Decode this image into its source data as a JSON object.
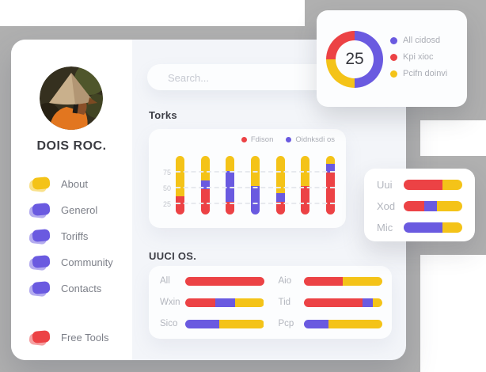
{
  "colors": {
    "red": "#ec4245",
    "purple": "#6a5ae0",
    "yellow": "#f4c318",
    "decor_gray": "#b0b0b0",
    "content_bg": "#f3f5f9",
    "card_bg": "#fcfdfe"
  },
  "sidebar": {
    "name": "DOIS ROC.",
    "items": [
      {
        "label": "About",
        "color": "#f4c318"
      },
      {
        "label": "Generol",
        "color": "#6a5ae0"
      },
      {
        "label": "Toriffs",
        "color": "#6a5ae0"
      },
      {
        "label": "Community",
        "color": "#6a5ae0"
      },
      {
        "label": "Contacts",
        "color": "#6a5ae0"
      }
    ],
    "footer_items": [
      {
        "label": "Free Tools",
        "color": "#ec4245"
      }
    ]
  },
  "search": {
    "placeholder": "Search..."
  },
  "sections": {
    "torks_title": "Torks",
    "uuci_title": "UUCI OS."
  },
  "chart_data": [
    {
      "id": "torks",
      "type": "bar",
      "orientation": "vertical",
      "stacked": true,
      "title": "Torks",
      "ylim": [
        0,
        100
      ],
      "yticks": [
        25,
        50,
        75
      ],
      "grid": "dashed-horizontal",
      "legend_position": "top-right",
      "legend": [
        {
          "name": "Fdison",
          "color": "#ec4245"
        },
        {
          "name": "Oidnksdi os",
          "color": "#6a5ae0"
        }
      ],
      "series": [
        {
          "name": "Fdison",
          "color": "#ec4245",
          "values": [
            31,
            43,
            22,
            0,
            22,
            49,
            72
          ]
        },
        {
          "name": "Oidnksdi os",
          "color": "#6a5ae0",
          "values": [
            0,
            15,
            52,
            49,
            15,
            0,
            14
          ]
        },
        {
          "name": "",
          "color": "#f4c318",
          "values": [
            69,
            42,
            26,
            51,
            63,
            51,
            14
          ]
        }
      ]
    },
    {
      "id": "kpi-donut",
      "type": "pie",
      "donut": true,
      "center_label": "25",
      "legend_position": "right",
      "slices": [
        {
          "label": "All cidosd",
          "color": "#6a5ae0",
          "value": 50,
          "start_pct": 0,
          "end_pct": 50
        },
        {
          "label": "Pcifn doinvi",
          "color": "#f4c318",
          "value": 25,
          "start_pct": 50,
          "end_pct": 75
        },
        {
          "label": "Kpi xioc",
          "color": "#ec4245",
          "value": 25,
          "start_pct": 75,
          "end_pct": 100
        }
      ],
      "legend": [
        {
          "name": "All cidosd",
          "color": "#6a5ae0"
        },
        {
          "name": "Kpi xioc",
          "color": "#ec4245"
        },
        {
          "name": "Pcifn doinvi",
          "color": "#f4c318"
        }
      ]
    },
    {
      "id": "uuci-os",
      "type": "bar",
      "orientation": "horizontal",
      "stacked": true,
      "title": "UUCI OS.",
      "layout_columns": 2,
      "xlim_pct": [
        0,
        100
      ],
      "categories": [
        "All",
        "Wxin",
        "Sico",
        "Aio",
        "Tid",
        "Pcp"
      ],
      "series": [
        {
          "name": "red",
          "color": "#ec4245",
          "values": [
            100,
            38,
            0,
            50,
            75,
            0
          ]
        },
        {
          "name": "purple",
          "color": "#6a5ae0",
          "values": [
            0,
            25,
            43,
            0,
            13,
            32
          ]
        },
        {
          "name": "yellow",
          "color": "#f4c318",
          "values": [
            0,
            37,
            57,
            50,
            12,
            68
          ]
        }
      ]
    },
    {
      "id": "uui-mini",
      "type": "bar",
      "orientation": "horizontal",
      "stacked": true,
      "xlim_pct": [
        0,
        100
      ],
      "categories": [
        "Uui",
        "Xod",
        "Mic"
      ],
      "series": [
        {
          "name": "red",
          "color": "#ec4245",
          "values": [
            66,
            35,
            0
          ]
        },
        {
          "name": "purple",
          "color": "#6a5ae0",
          "values": [
            0,
            22,
            66
          ]
        },
        {
          "name": "yellow",
          "color": "#f4c318",
          "values": [
            34,
            43,
            34
          ]
        }
      ]
    }
  ]
}
